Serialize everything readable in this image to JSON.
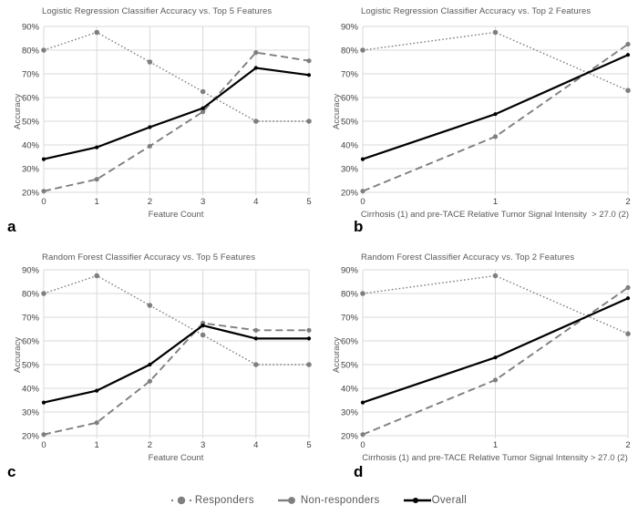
{
  "figure": {
    "background": "#ffffff"
  },
  "colors": {
    "responders": "#7f7f7f",
    "non_responders": "#7f7f7f",
    "overall": "#000000",
    "gridline": "#d9d9d9",
    "title_text": "#595959",
    "tick_text": "#404040"
  },
  "legend": {
    "items": [
      {
        "id": "responders",
        "label": "Responders"
      },
      {
        "id": "non-responders",
        "label": "Non-responders"
      },
      {
        "id": "overall",
        "label": "Overall"
      }
    ]
  },
  "chart_data": [
    {
      "type": "line",
      "panel_letter": "a",
      "title": "Logistic Regression Classifier Accuracy vs. Top 5 Features",
      "xlabel": "Feature Count",
      "ylabel": "Accuracy",
      "categories": [
        "0",
        "1",
        "2",
        "3",
        "4",
        "5"
      ],
      "ylim": [
        20,
        90
      ],
      "ytick_step": 10,
      "ytick_suffix": "%",
      "grid": true,
      "legend_position": "shared-bottom",
      "series": [
        {
          "name": "Responders",
          "values": [
            80,
            87.5,
            75,
            62.5,
            50,
            50
          ]
        },
        {
          "name": "Non-responders",
          "values": [
            20.5,
            25.5,
            39.5,
            54,
            79,
            75.5
          ]
        },
        {
          "name": "Overall",
          "values": [
            34,
            39,
            47.5,
            55.5,
            72.5,
            69.5
          ]
        }
      ]
    },
    {
      "type": "line",
      "panel_letter": "b",
      "title": "Logistic Regression Classifier Accuracy vs. Top 2 Features",
      "xlabel": "Cirrhosis (1) and pre-TACE Relative Tumor Signal Intensity  > 27.0 (2)",
      "ylabel": "Accuracy",
      "categories": [
        "0",
        "1",
        "2"
      ],
      "ylim": [
        20,
        90
      ],
      "ytick_step": 10,
      "ytick_suffix": "%",
      "grid": true,
      "legend_position": "shared-bottom",
      "series": [
        {
          "name": "Responders",
          "values": [
            80,
            87.5,
            63
          ]
        },
        {
          "name": "Non-responders",
          "values": [
            20.5,
            43.5,
            82.5
          ]
        },
        {
          "name": "Overall",
          "values": [
            34,
            53,
            78
          ]
        }
      ]
    },
    {
      "type": "line",
      "panel_letter": "c",
      "title": "Random Forest Classifier Accuracy vs. Top 5 Features",
      "xlabel": "Feature Count",
      "ylabel": "Accuracy",
      "categories": [
        "0",
        "1",
        "2",
        "3",
        "4",
        "5"
      ],
      "ylim": [
        20,
        90
      ],
      "ytick_step": 10,
      "ytick_suffix": "%",
      "grid": true,
      "legend_position": "shared-bottom",
      "series": [
        {
          "name": "Responders",
          "values": [
            80,
            87.5,
            75,
            62.5,
            50,
            50
          ]
        },
        {
          "name": "Non-responders",
          "values": [
            20.5,
            25.5,
            43,
            67.5,
            64.5,
            64.5
          ]
        },
        {
          "name": "Overall",
          "values": [
            34,
            39,
            50,
            66.5,
            61,
            61
          ]
        }
      ]
    },
    {
      "type": "line",
      "panel_letter": "d",
      "title": "Random Forest Classifier Accuracy vs. Top 2 Features",
      "xlabel": "Cirrhosis (1) and pre-TACE Relative Tumor Signal Intensity > 27.0 (2)",
      "ylabel": "Accuracy",
      "categories": [
        "0",
        "1",
        "2"
      ],
      "ylim": [
        20,
        90
      ],
      "ytick_step": 10,
      "ytick_suffix": "%",
      "grid": true,
      "legend_position": "shared-bottom",
      "series": [
        {
          "name": "Responders",
          "values": [
            80,
            87.5,
            63
          ]
        },
        {
          "name": "Non-responders",
          "values": [
            20.5,
            43.5,
            82.5
          ]
        },
        {
          "name": "Overall",
          "values": [
            34,
            53,
            78
          ]
        }
      ]
    }
  ]
}
